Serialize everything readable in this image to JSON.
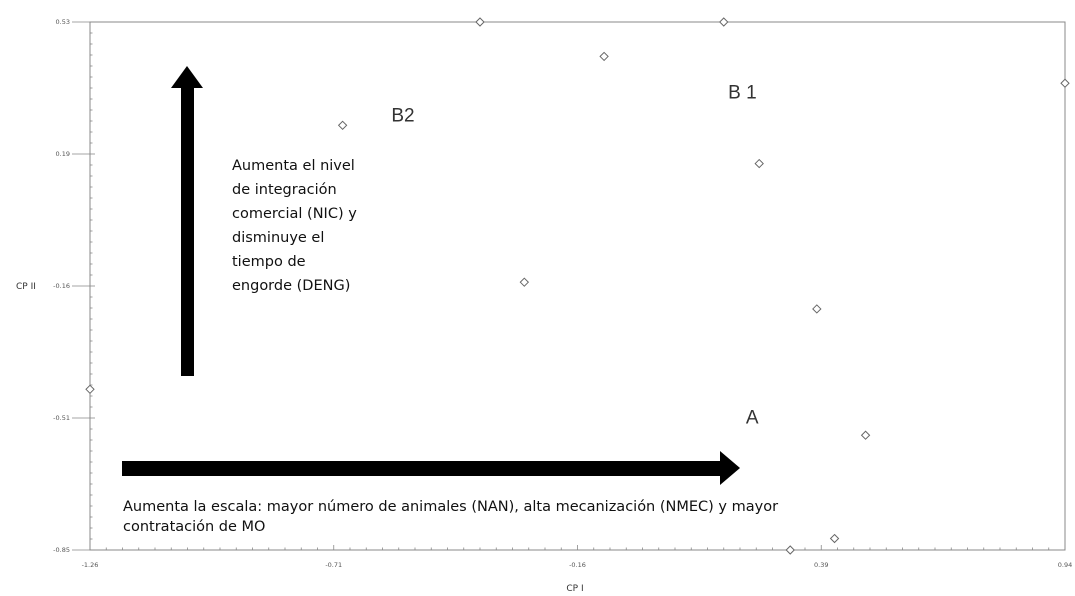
{
  "chart_data": {
    "type": "scatter",
    "xlabel": "CP I",
    "ylabel": "CP II",
    "x_ticks": [
      "-1.26",
      "-0.71",
      "-0.16",
      "0.39",
      "0.94"
    ],
    "y_ticks": [
      "0.53",
      "0.19",
      "-0.16",
      "-0.51",
      "-0.85"
    ],
    "xlim": [
      -1.26,
      0.94
    ],
    "ylim": [
      -0.85,
      0.53
    ],
    "points": [
      {
        "x": -1.26,
        "y": -0.43
      },
      {
        "x": -0.69,
        "y": 0.26
      },
      {
        "x": -0.38,
        "y": 0.53
      },
      {
        "x": -0.28,
        "y": -0.15
      },
      {
        "x": -0.1,
        "y": 0.44
      },
      {
        "x": 0.17,
        "y": 0.53
      },
      {
        "x": 0.25,
        "y": 0.16
      },
      {
        "x": 0.32,
        "y": -0.85
      },
      {
        "x": 0.38,
        "y": -0.22
      },
      {
        "x": 0.42,
        "y": -0.82
      },
      {
        "x": 0.49,
        "y": -0.55
      },
      {
        "x": 0.94,
        "y": 0.37
      }
    ],
    "group_labels": [
      {
        "text": "B2",
        "x": -0.58,
        "y": 0.27
      },
      {
        "text": "B 1",
        "x": 0.18,
        "y": 0.33
      },
      {
        "text": "A",
        "x": 0.22,
        "y": -0.52
      }
    ]
  },
  "annotations": {
    "vertical_lines": [
      "Aumenta el nivel",
      "de integración",
      "comercial (NIC) y",
      "disminuye el",
      "tiempo de",
      "engorde (DENG)"
    ],
    "horizontal_lines": [
      "Aumenta la escala: mayor número de animales (NAN), alta mecanización (NMEC)  y mayor",
      "contratación de MO"
    ]
  }
}
